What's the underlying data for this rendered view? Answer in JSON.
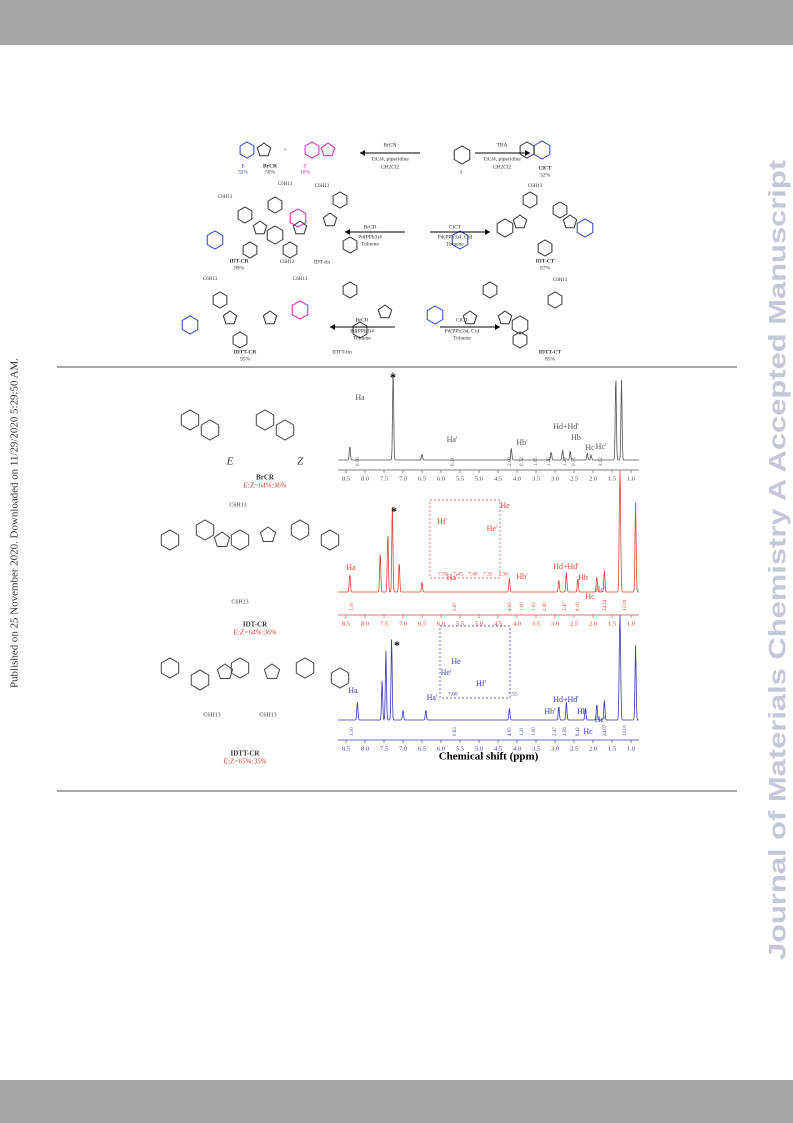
{
  "side_note": "Published on 25 November 2020. Downloaded on 11/29/2020 5:29:50 AM.",
  "watermark": "Journal of Materials Chemistry A Accepted Manuscript",
  "scheme": {
    "labels": [
      "E",
      "32%",
      "BrCR",
      "50%",
      "Z",
      "18%",
      "+",
      "BrCN",
      "TiCl4, piperidine",
      "CH2Cl2",
      "1",
      "TBA",
      "TiCl4, piperidine",
      "CH2Cl2",
      "ClCT",
      "32%",
      "IDT-CR",
      "99%",
      "BrCR",
      "Pd(PPh3)4",
      "Toluene",
      "IDT-tin",
      "ClCT",
      "Pd(PPh3)4, CuI",
      "Toluene",
      "IDT-CT",
      "87%",
      "IDTT-CR",
      "95%",
      "BrCR",
      "Pd(PPh3)4",
      "Toluene",
      "IDTT-tin",
      "ClCT",
      "Pd(PPh3)4, CuI",
      "Toluene",
      "IDTT-CT",
      "85%",
      "C6H13",
      "C6H13",
      "C6H13",
      "C6H13",
      "C6H13",
      "C6H13",
      "C6H13",
      "C6H13"
    ]
  },
  "structures": {
    "labels": [
      "E",
      "Z",
      "BrCR",
      "E:Z=64%:36%",
      "IDT-CR",
      "E:Z=64%:36%",
      "IDTT-CR",
      "E:Z=65%:35%",
      "C6H13",
      "C6H13",
      "C6H13",
      "C6H13"
    ]
  },
  "spectra": [
    {
      "color": "#555555",
      "peaks": [
        "Ha",
        "*",
        "Ha'",
        "Hb'",
        "Hd+Hd'",
        "Hb",
        "Hc",
        "Hc'"
      ],
      "integrals": [
        "0.56",
        "0.31",
        "2.00",
        "0.72",
        "1.05",
        "1.26",
        "1.29",
        "0.71",
        "3.02"
      ],
      "inset_ticks": []
    },
    {
      "color": "#e0443a",
      "peaks": [
        "Ha",
        "*",
        "Hf'",
        "He'",
        "He",
        "Ha'",
        "Hd+Hd'",
        "Hb'",
        "Hb",
        "Hc",
        "Hc'"
      ],
      "integrals": [
        "1.10",
        "0.67",
        "4.00",
        "1.00",
        "1.02",
        "2.00",
        "2.47",
        "8.10",
        "24.24",
        "12.09"
      ],
      "inset_ticks": [
        "7.50",
        "7.45",
        "7.40",
        "7.35",
        "7.30"
      ]
    },
    {
      "color": "#3a3ab8",
      "peaks": [
        "Ha",
        "*",
        "He",
        "He'",
        "Hf'",
        "Ha'",
        "Hd+Hd'",
        "Hb'",
        "Hb",
        "Hc",
        "Hc'"
      ],
      "integrals": [
        "1.10",
        "0.63",
        "4.05",
        "1.31",
        "1.00",
        "2.47",
        "2.56",
        "8.42",
        "24.07",
        "12.01"
      ],
      "inset_ticks": [
        "7.60",
        "7.55"
      ]
    }
  ],
  "axis": {
    "ticks": [
      "8.5",
      "8.0",
      "7.5",
      "7.0",
      "6.5",
      "6.0",
      "5.5",
      "5.0",
      "4.5",
      "4.0",
      "3.5",
      "3.0",
      "2.5",
      "2.0",
      "1.5",
      "1.0"
    ],
    "label": "Chemical shift (ppm)"
  }
}
